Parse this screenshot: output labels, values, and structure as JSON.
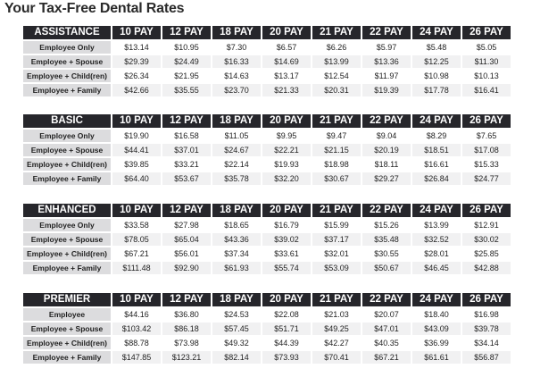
{
  "title": "Your Tax-Free Dental Rates",
  "colors": {
    "header_bg": "#26262b",
    "header_text": "#ffffff",
    "label_bg": "#dcdcde",
    "alt_row_bg": "#f1f1f2"
  },
  "tables": [
    {
      "name": "ASSISTANCE",
      "columns": [
        "10 PAY",
        "12 PAY",
        "18 PAY",
        "20 PAY",
        "21 PAY",
        "22 PAY",
        "24 PAY",
        "26 PAY"
      ],
      "rows": [
        {
          "label": "Employee Only",
          "values": [
            "$13.14",
            "$10.95",
            "$7.30",
            "$6.57",
            "$6.26",
            "$5.97",
            "$5.48",
            "$5.05"
          ]
        },
        {
          "label": "Employee + Spouse",
          "values": [
            "$29.39",
            "$24.49",
            "$16.33",
            "$14.69",
            "$13.99",
            "$13.36",
            "$12.25",
            "$11.30"
          ]
        },
        {
          "label": "Employee + Child(ren)",
          "values": [
            "$26.34",
            "$21.95",
            "$14.63",
            "$13.17",
            "$12.54",
            "$11.97",
            "$10.98",
            "$10.13"
          ]
        },
        {
          "label": "Employee + Family",
          "values": [
            "$42.66",
            "$35.55",
            "$23.70",
            "$21.33",
            "$20.31",
            "$19.39",
            "$17.78",
            "$16.41"
          ]
        }
      ]
    },
    {
      "name": "BASIC",
      "columns": [
        "10 PAY",
        "12 PAY",
        "18 PAY",
        "20 PAY",
        "21 PAY",
        "22 PAY",
        "24 PAY",
        "26 PAY"
      ],
      "rows": [
        {
          "label": "Employee Only",
          "values": [
            "$19.90",
            "$16.58",
            "$11.05",
            "$9.95",
            "$9.47",
            "$9.04",
            "$8.29",
            "$7.65"
          ]
        },
        {
          "label": "Employee + Spouse",
          "values": [
            "$44.41",
            "$37.01",
            "$24.67",
            "$22.21",
            "$21.15",
            "$20.19",
            "$18.51",
            "$17.08"
          ]
        },
        {
          "label": "Employee + Child(ren)",
          "values": [
            "$39.85",
            "$33.21",
            "$22.14",
            "$19.93",
            "$18.98",
            "$18.11",
            "$16.61",
            "$15.33"
          ]
        },
        {
          "label": "Employee + Family",
          "values": [
            "$64.40",
            "$53.67",
            "$35.78",
            "$32.20",
            "$30.67",
            "$29.27",
            "$26.84",
            "$24.77"
          ]
        }
      ]
    },
    {
      "name": "ENHANCED",
      "columns": [
        "10 PAY",
        "12 PAY",
        "18 PAY",
        "20 PAY",
        "21 PAY",
        "22 PAY",
        "24 PAY",
        "26 PAY"
      ],
      "rows": [
        {
          "label": "Employee Only",
          "values": [
            "$33.58",
            "$27.98",
            "$18.65",
            "$16.79",
            "$15.99",
            "$15.26",
            "$13.99",
            "$12.91"
          ]
        },
        {
          "label": "Employee + Spouse",
          "values": [
            "$78.05",
            "$65.04",
            "$43.36",
            "$39.02",
            "$37.17",
            "$35.48",
            "$32.52",
            "$30.02"
          ]
        },
        {
          "label": "Employee + Child(ren)",
          "values": [
            "$67.21",
            "$56.01",
            "$37.34",
            "$33.61",
            "$32.01",
            "$30.55",
            "$28.01",
            "$25.85"
          ]
        },
        {
          "label": "Employee + Family",
          "values": [
            "$111.48",
            "$92.90",
            "$61.93",
            "$55.74",
            "$53.09",
            "$50.67",
            "$46.45",
            "$42.88"
          ]
        }
      ]
    },
    {
      "name": "PREMIER",
      "columns": [
        "10 PAY",
        "12 PAY",
        "18 PAY",
        "20 PAY",
        "21 PAY",
        "22 PAY",
        "24 PAY",
        "26 PAY"
      ],
      "rows": [
        {
          "label": "Employee",
          "values": [
            "$44.16",
            "$36.80",
            "$24.53",
            "$22.08",
            "$21.03",
            "$20.07",
            "$18.40",
            "$16.98"
          ]
        },
        {
          "label": "Employee + Spouse",
          "values": [
            "$103.42",
            "$86.18",
            "$57.45",
            "$51.71",
            "$49.25",
            "$47.01",
            "$43.09",
            "$39.78"
          ]
        },
        {
          "label": "Employee + Child(ren)",
          "values": [
            "$88.78",
            "$73.98",
            "$49.32",
            "$44.39",
            "$42.27",
            "$40.35",
            "$36.99",
            "$34.14"
          ]
        },
        {
          "label": "Employee + Family",
          "values": [
            "$147.85",
            "$123.21",
            "$82.14",
            "$73.93",
            "$70.41",
            "$67.21",
            "$61.61",
            "$56.87"
          ]
        }
      ]
    }
  ]
}
